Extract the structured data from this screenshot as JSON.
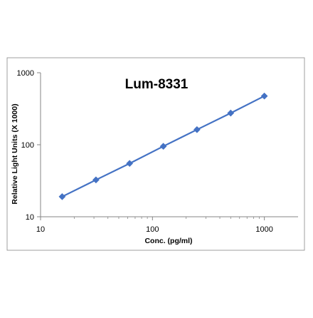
{
  "chart_data": {
    "type": "line",
    "title": "Lum-8331",
    "xlabel": "Conc. (pg/ml)",
    "ylabel": "Relative Light Units (X 1000)",
    "x_scale": "log",
    "y_scale": "log",
    "xlim": [
      10,
      2000
    ],
    "ylim": [
      10,
      1000
    ],
    "x_ticks": [
      10,
      100,
      1000
    ],
    "x_tick_labels": [
      "10",
      "100",
      "1000"
    ],
    "y_ticks": [
      10,
      100,
      1000
    ],
    "y_tick_labels": [
      "10",
      "100",
      "1000"
    ],
    "grid": false,
    "legend": "none",
    "marker": "diamond",
    "series": [
      {
        "x": [
          15.6,
          31.25,
          62.5,
          125,
          250,
          500,
          1000
        ],
        "y": [
          19,
          32.5,
          55,
          95,
          162,
          275,
          475
        ],
        "color": "#4472c4"
      }
    ]
  }
}
